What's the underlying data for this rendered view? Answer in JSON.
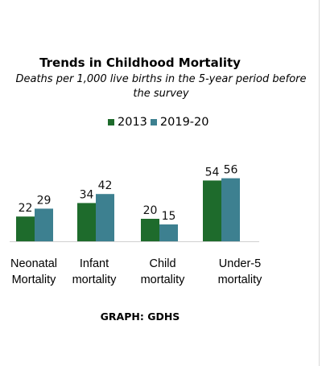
{
  "chart_data": {
    "type": "bar",
    "title": "Trends in Childhood Mortality",
    "subtitle": "Deaths per 1,000 live births in the 5-year period before the survey",
    "categories": [
      {
        "line1": "Neonatal",
        "line2": "Mortality"
      },
      {
        "line1": "Infant",
        "line2": "mortality"
      },
      {
        "line1": "Child",
        "line2": "mortality"
      },
      {
        "line1": "Under-5",
        "line2": "mortality"
      }
    ],
    "series": [
      {
        "name": "2013",
        "color": "#1e6b2c",
        "values": [
          22,
          34,
          20,
          54
        ]
      },
      {
        "name": "2019-20",
        "color": "#3d8090",
        "values": [
          29,
          42,
          15,
          56
        ]
      }
    ],
    "ylim": [
      0,
      60
    ],
    "legend_position": "top",
    "grid": false
  },
  "source": "GRAPH: GDHS"
}
